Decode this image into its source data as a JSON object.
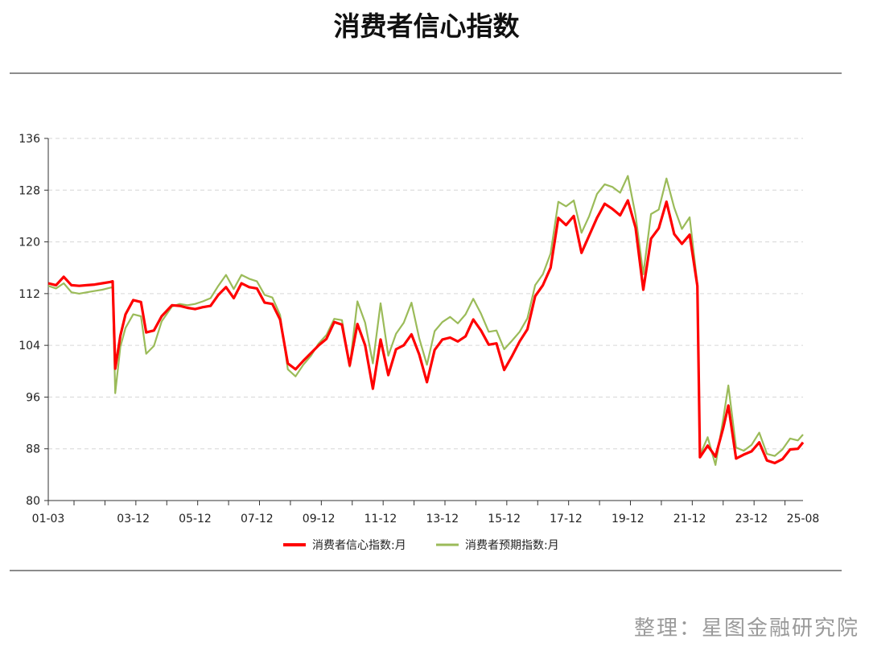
{
  "title": "消费者信心指数",
  "credit": "整理：星图金融研究院",
  "chart_data": {
    "type": "line",
    "title": "消费者信心指数",
    "xlabel": "",
    "ylabel": "",
    "ylim": [
      80,
      136
    ],
    "yticks": [
      80,
      88,
      96,
      104,
      112,
      120,
      128,
      136
    ],
    "x_range": [
      "2001-03",
      "2025-08"
    ],
    "x_tick_labels": [
      "01-03",
      "03-12",
      "05-12",
      "07-12",
      "09-12",
      "11-12",
      "13-12",
      "15-12",
      "17-12",
      "19-12",
      "21-12",
      "23-12",
      "25-08"
    ],
    "grid": "horizontal-dashed",
    "legend": "bottom-center",
    "series": [
      {
        "name": "消费者信心指数:月",
        "color": "#ff0000",
        "points": [
          [
            "2001-03",
            113.6
          ],
          [
            "2001-06",
            113.3
          ],
          [
            "2001-09",
            114.6
          ],
          [
            "2001-12",
            113.3
          ],
          [
            "2002-03",
            113.2
          ],
          [
            "2002-06",
            113.3
          ],
          [
            "2002-09",
            113.4
          ],
          [
            "2002-12",
            113.6
          ],
          [
            "2003-03",
            113.8
          ],
          [
            "2003-04",
            113.9
          ],
          [
            "2003-05",
            100.4
          ],
          [
            "2003-07",
            105.5
          ],
          [
            "2003-09",
            108.8
          ],
          [
            "2003-12",
            111.0
          ],
          [
            "2004-03",
            110.7
          ],
          [
            "2004-05",
            106.0
          ],
          [
            "2004-08",
            106.3
          ],
          [
            "2004-11",
            108.5
          ],
          [
            "2005-03",
            110.2
          ],
          [
            "2005-06",
            110.1
          ],
          [
            "2005-09",
            109.8
          ],
          [
            "2005-12",
            109.6
          ],
          [
            "2006-03",
            109.9
          ],
          [
            "2006-06",
            110.1
          ],
          [
            "2006-09",
            111.8
          ],
          [
            "2006-12",
            113.0
          ],
          [
            "2007-03",
            111.3
          ],
          [
            "2007-06",
            113.6
          ],
          [
            "2007-09",
            113.0
          ],
          [
            "2007-12",
            112.8
          ],
          [
            "2008-03",
            110.6
          ],
          [
            "2008-06",
            110.4
          ],
          [
            "2008-09",
            108.0
          ],
          [
            "2008-12",
            101.2
          ],
          [
            "2009-03",
            100.3
          ],
          [
            "2009-06",
            101.6
          ],
          [
            "2009-09",
            102.8
          ],
          [
            "2009-12",
            104.0
          ],
          [
            "2010-03",
            105.0
          ],
          [
            "2010-06",
            107.6
          ],
          [
            "2010-09",
            107.2
          ],
          [
            "2010-12",
            100.9
          ],
          [
            "2011-03",
            107.3
          ],
          [
            "2011-06",
            104.0
          ],
          [
            "2011-09",
            97.3
          ],
          [
            "2011-12",
            104.9
          ],
          [
            "2012-03",
            99.4
          ],
          [
            "2012-06",
            103.4
          ],
          [
            "2012-09",
            104.0
          ],
          [
            "2012-12",
            105.7
          ],
          [
            "2013-03",
            102.6
          ],
          [
            "2013-06",
            98.3
          ],
          [
            "2013-09",
            103.3
          ],
          [
            "2013-12",
            104.9
          ],
          [
            "2014-03",
            105.2
          ],
          [
            "2014-06",
            104.6
          ],
          [
            "2014-09",
            105.4
          ],
          [
            "2014-12",
            108.0
          ],
          [
            "2015-03",
            106.3
          ],
          [
            "2015-06",
            104.1
          ],
          [
            "2015-09",
            104.3
          ],
          [
            "2015-12",
            100.2
          ],
          [
            "2016-03",
            102.3
          ],
          [
            "2016-06",
            104.6
          ],
          [
            "2016-09",
            106.5
          ],
          [
            "2016-12",
            111.6
          ],
          [
            "2017-03",
            113.3
          ],
          [
            "2017-06",
            116.0
          ],
          [
            "2017-09",
            123.7
          ],
          [
            "2017-12",
            122.6
          ],
          [
            "2018-03",
            124.0
          ],
          [
            "2018-06",
            118.3
          ],
          [
            "2018-09",
            121.0
          ],
          [
            "2018-12",
            123.7
          ],
          [
            "2019-03",
            125.9
          ],
          [
            "2019-06",
            125.1
          ],
          [
            "2019-09",
            124.1
          ],
          [
            "2019-12",
            126.4
          ],
          [
            "2020-03",
            122.2
          ],
          [
            "2020-06",
            112.6
          ],
          [
            "2020-09",
            120.5
          ],
          [
            "2020-12",
            122.1
          ],
          [
            "2021-03",
            126.2
          ],
          [
            "2021-06",
            121.2
          ],
          [
            "2021-09",
            119.7
          ],
          [
            "2021-12",
            121.1
          ],
          [
            "2022-03",
            113.2
          ],
          [
            "2022-04",
            86.7
          ],
          [
            "2022-07",
            88.5
          ],
          [
            "2022-10",
            86.8
          ],
          [
            "2023-01",
            91.2
          ],
          [
            "2023-03",
            94.7
          ],
          [
            "2023-06",
            86.5
          ],
          [
            "2023-09",
            87.1
          ],
          [
            "2023-12",
            87.6
          ],
          [
            "2024-03",
            89.0
          ],
          [
            "2024-06",
            86.2
          ],
          [
            "2024-09",
            85.8
          ],
          [
            "2024-12",
            86.4
          ],
          [
            "2025-03",
            87.9
          ],
          [
            "2025-06",
            88.0
          ],
          [
            "2025-08",
            89.0
          ]
        ]
      },
      {
        "name": "消费者预期指数:月",
        "color": "#9bbb59",
        "points": [
          [
            "2001-03",
            113.2
          ],
          [
            "2001-06",
            112.8
          ],
          [
            "2001-09",
            113.6
          ],
          [
            "2001-12",
            112.2
          ],
          [
            "2002-03",
            112.0
          ],
          [
            "2002-06",
            112.2
          ],
          [
            "2002-09",
            112.4
          ],
          [
            "2002-12",
            112.6
          ],
          [
            "2003-03",
            112.9
          ],
          [
            "2003-04",
            113.0
          ],
          [
            "2003-05",
            96.6
          ],
          [
            "2003-07",
            103.8
          ],
          [
            "2003-09",
            106.7
          ],
          [
            "2003-12",
            108.8
          ],
          [
            "2004-03",
            108.5
          ],
          [
            "2004-05",
            102.7
          ],
          [
            "2004-08",
            103.9
          ],
          [
            "2004-11",
            107.7
          ],
          [
            "2005-03",
            110.0
          ],
          [
            "2005-06",
            110.4
          ],
          [
            "2005-09",
            110.2
          ],
          [
            "2005-12",
            110.4
          ],
          [
            "2006-03",
            110.8
          ],
          [
            "2006-06",
            111.3
          ],
          [
            "2006-09",
            113.2
          ],
          [
            "2006-12",
            114.9
          ],
          [
            "2007-03",
            112.7
          ],
          [
            "2007-06",
            114.9
          ],
          [
            "2007-09",
            114.3
          ],
          [
            "2007-12",
            113.9
          ],
          [
            "2008-03",
            111.8
          ],
          [
            "2008-06",
            111.4
          ],
          [
            "2008-09",
            108.7
          ],
          [
            "2008-12",
            100.3
          ],
          [
            "2009-03",
            99.2
          ],
          [
            "2009-06",
            101.0
          ],
          [
            "2009-09",
            102.4
          ],
          [
            "2009-12",
            104.3
          ],
          [
            "2010-03",
            105.6
          ],
          [
            "2010-06",
            108.1
          ],
          [
            "2010-09",
            107.9
          ],
          [
            "2010-12",
            100.7
          ],
          [
            "2011-03",
            110.8
          ],
          [
            "2011-06",
            107.5
          ],
          [
            "2011-09",
            101.2
          ],
          [
            "2011-12",
            110.5
          ],
          [
            "2012-03",
            102.4
          ],
          [
            "2012-06",
            105.8
          ],
          [
            "2012-09",
            107.5
          ],
          [
            "2012-12",
            110.6
          ],
          [
            "2013-03",
            105.1
          ],
          [
            "2013-06",
            101.0
          ],
          [
            "2013-09",
            106.2
          ],
          [
            "2013-12",
            107.6
          ],
          [
            "2014-03",
            108.4
          ],
          [
            "2014-06",
            107.4
          ],
          [
            "2014-09",
            108.8
          ],
          [
            "2014-12",
            111.2
          ],
          [
            "2015-03",
            108.9
          ],
          [
            "2015-06",
            106.1
          ],
          [
            "2015-09",
            106.3
          ],
          [
            "2015-12",
            103.4
          ],
          [
            "2016-03",
            104.7
          ],
          [
            "2016-06",
            106.1
          ],
          [
            "2016-09",
            108.2
          ],
          [
            "2016-12",
            113.3
          ],
          [
            "2017-03",
            115.0
          ],
          [
            "2017-06",
            118.2
          ],
          [
            "2017-09",
            126.2
          ],
          [
            "2017-12",
            125.5
          ],
          [
            "2018-03",
            126.4
          ],
          [
            "2018-06",
            121.4
          ],
          [
            "2018-09",
            124.0
          ],
          [
            "2018-12",
            127.4
          ],
          [
            "2019-03",
            128.9
          ],
          [
            "2019-06",
            128.5
          ],
          [
            "2019-09",
            127.6
          ],
          [
            "2019-12",
            130.2
          ],
          [
            "2020-03",
            124.1
          ],
          [
            "2020-06",
            115.0
          ],
          [
            "2020-09",
            124.3
          ],
          [
            "2020-12",
            125.0
          ],
          [
            "2021-03",
            129.8
          ],
          [
            "2021-06",
            125.3
          ],
          [
            "2021-09",
            122.0
          ],
          [
            "2021-12",
            123.8
          ],
          [
            "2022-03",
            113.5
          ],
          [
            "2022-04",
            87.0
          ],
          [
            "2022-07",
            89.8
          ],
          [
            "2022-10",
            85.5
          ],
          [
            "2023-01",
            92.6
          ],
          [
            "2023-03",
            97.8
          ],
          [
            "2023-06",
            88.2
          ],
          [
            "2023-09",
            87.7
          ],
          [
            "2023-12",
            88.6
          ],
          [
            "2024-03",
            90.5
          ],
          [
            "2024-06",
            87.2
          ],
          [
            "2024-09",
            86.9
          ],
          [
            "2024-12",
            87.9
          ],
          [
            "2025-03",
            89.6
          ],
          [
            "2025-06",
            89.3
          ],
          [
            "2025-08",
            90.2
          ]
        ]
      }
    ]
  }
}
